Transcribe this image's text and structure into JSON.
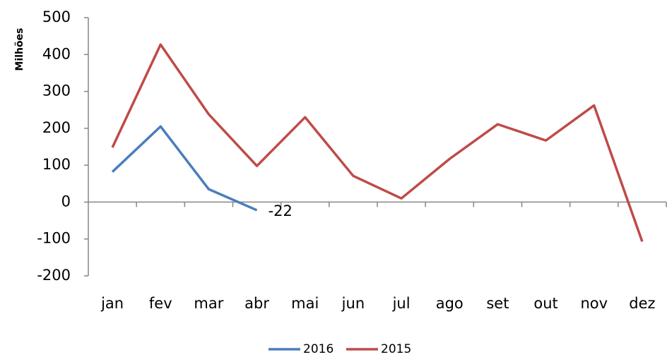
{
  "chart_data": {
    "type": "line",
    "y_label": "Milhões",
    "categories": [
      "jan",
      "fev",
      "mar",
      "abr",
      "mai",
      "jun",
      "jul",
      "ago",
      "set",
      "out",
      "nov",
      "dez"
    ],
    "series": [
      {
        "name": "2016",
        "color": "#4a7ebb",
        "values": [
          82,
          205,
          35,
          -22,
          null,
          null,
          null,
          null,
          null,
          null,
          null,
          null
        ],
        "value_labels": [
          null,
          null,
          null,
          "-22",
          null,
          null,
          null,
          null,
          null,
          null,
          null,
          null
        ]
      },
      {
        "name": "2015",
        "color": "#be4b48",
        "values": [
          148,
          427,
          238,
          98,
          230,
          71,
          10,
          117,
          211,
          167,
          262,
          -107
        ]
      }
    ],
    "ylim": [
      -200,
      500
    ],
    "yticks": [
      -200,
      -100,
      0,
      100,
      200,
      300,
      400,
      500
    ],
    "grid": false,
    "legend": "bottom"
  }
}
